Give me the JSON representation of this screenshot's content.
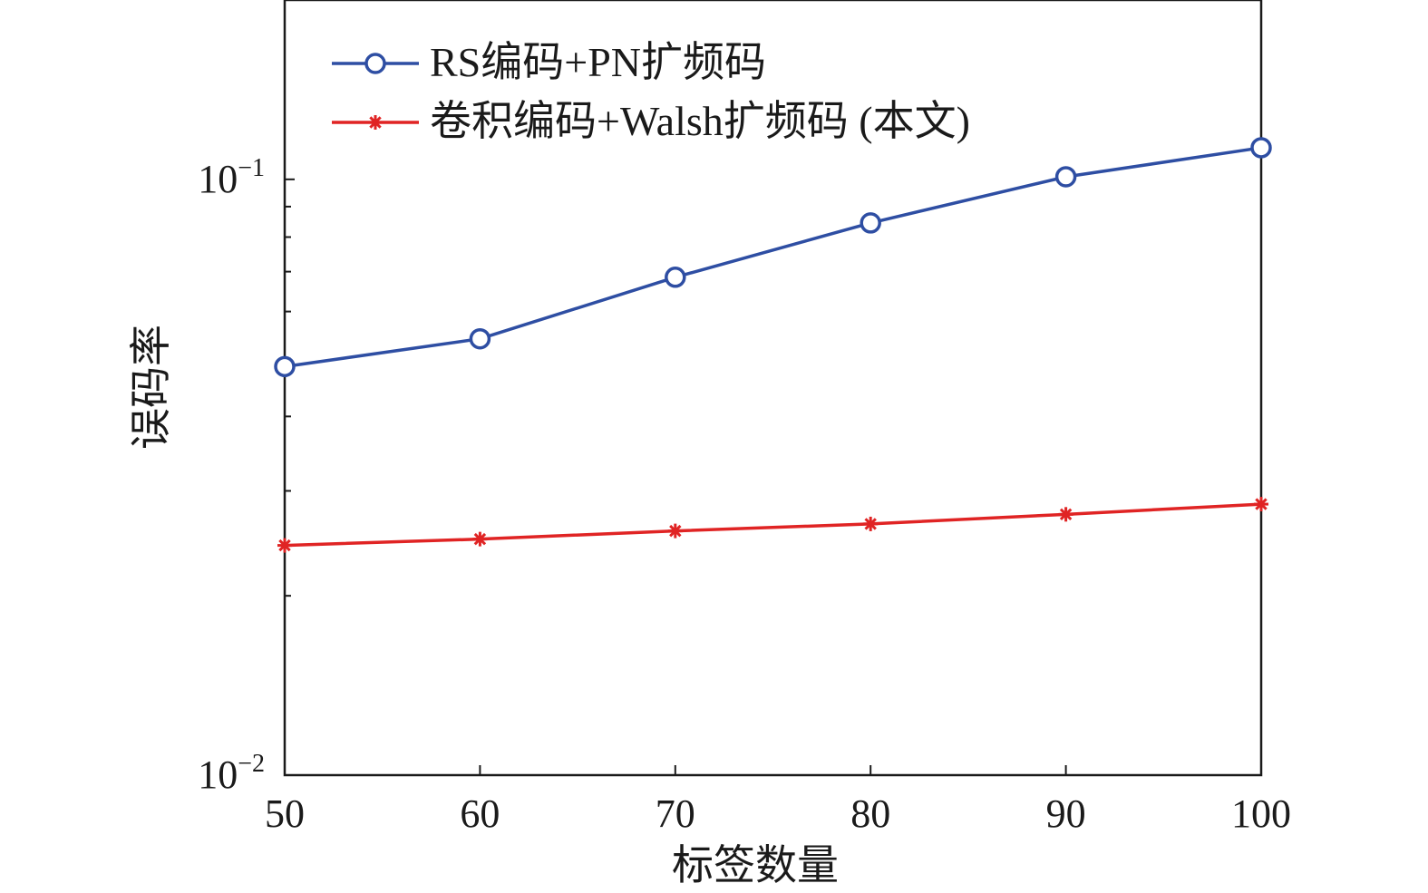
{
  "chart_data": {
    "type": "line",
    "title": "",
    "xlabel": "标签数量",
    "ylabel": "误码率",
    "xlim": [
      50,
      100
    ],
    "ylim": [
      0.01,
      0.2
    ],
    "yscale": "log",
    "x": [
      50,
      60,
      70,
      80,
      90,
      100
    ],
    "x_ticks": [
      "50",
      "60",
      "70",
      "80",
      "90",
      "100"
    ],
    "y_ticks": [
      {
        "value": 0.1,
        "base": "10",
        "exp": "−1"
      },
      {
        "value": 0.01,
        "base": "10",
        "exp": "−2"
      }
    ],
    "grid": false,
    "legend_position": "top-left",
    "series": [
      {
        "name": "RS编码+PN扩频码",
        "color": "#2e4ea3",
        "marker": "circle",
        "values": [
          0.0485,
          0.054,
          0.0685,
          0.0845,
          0.101,
          0.113
        ]
      },
      {
        "name": "卷积编码+Walsh扩频码 (本文)",
        "color": "#e02424",
        "marker": "asterisk",
        "values": [
          0.0243,
          0.0249,
          0.0257,
          0.0264,
          0.0274,
          0.0285
        ]
      }
    ]
  }
}
